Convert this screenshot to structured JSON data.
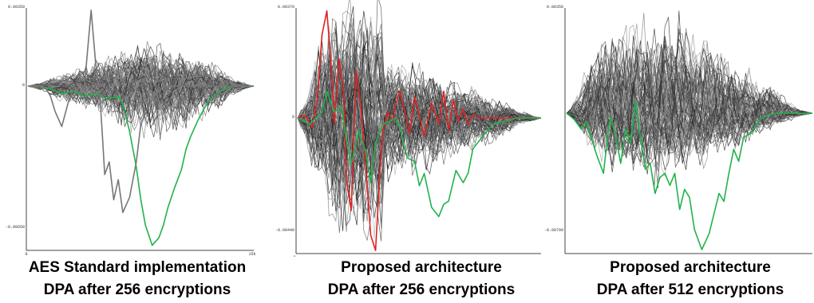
{
  "chart_data": [
    {
      "type": "line",
      "title": "",
      "xlabel": "",
      "ylabel": "",
      "y_tick_labels": [
        "0.00350",
        "0",
        "-0.00650"
      ],
      "x_tick_labels": [
        "0",
        "15k"
      ],
      "caption_line1": "AES Standard implementation",
      "caption_line2": "DPA after 256 encryptions",
      "n_background_traces": 90,
      "highlight_series": [
        {
          "color": "#22b24c",
          "x": [
            0,
            5,
            10,
            15,
            20,
            25,
            30,
            35,
            40,
            42,
            45,
            48,
            50,
            52,
            55,
            58,
            60,
            62,
            65,
            68,
            70,
            72,
            75,
            78,
            80,
            82,
            85,
            88,
            90,
            95,
            100
          ],
          "y": [
            0,
            0,
            -0.0001,
            -0.0003,
            -0.0002,
            -0.0004,
            -0.0003,
            -0.0005,
            -0.0004,
            -0.0007,
            -0.0018,
            -0.0032,
            -0.0045,
            -0.0055,
            -0.0063,
            -0.006,
            -0.0055,
            -0.0048,
            -0.004,
            -0.0033,
            -0.0025,
            -0.002,
            -0.0014,
            -0.0009,
            -0.0006,
            -0.0004,
            -0.0002,
            -0.0001,
            0,
            0,
            0
          ]
        },
        {
          "color": "#777777",
          "x": [
            0,
            3,
            6,
            8,
            10,
            12,
            15,
            18,
            20,
            25,
            28,
            30,
            32,
            33,
            34,
            36,
            38,
            40,
            42,
            45,
            48,
            50,
            55,
            60,
            70,
            80,
            90,
            100
          ],
          "y": [
            0,
            0,
            0,
            -0.0001,
            -0.0004,
            -0.001,
            -0.0016,
            -0.0006,
            -0.0002,
            0,
            0.0034,
            0.001,
            -0.0006,
            -0.002,
            -0.0035,
            -0.003,
            -0.0045,
            -0.0037,
            -0.005,
            -0.0044,
            -0.003,
            -0.0015,
            -0.0005,
            0,
            0,
            0,
            0,
            0
          ]
        }
      ],
      "ylim": [
        -0.0065,
        0.0035
      ]
    },
    {
      "type": "line",
      "title": "",
      "xlabel": "",
      "ylabel": "",
      "y_tick_labels": [
        "0.00370",
        "0",
        "-0.00440"
      ],
      "x_tick_labels": [
        "0"
      ],
      "caption_line1": "Proposed architecture",
      "caption_line2": "DPA after 256 encryptions",
      "n_background_traces": 90,
      "highlight_series": [
        {
          "color": "#dd2222",
          "x": [
            0,
            3,
            6,
            8,
            10,
            12,
            14,
            15,
            17,
            19,
            20,
            22,
            24,
            26,
            28,
            30,
            32,
            34,
            35,
            37,
            39,
            40,
            42,
            44,
            46,
            48,
            50,
            52,
            55,
            58,
            60,
            62,
            64,
            66,
            68,
            70,
            72,
            75,
            78,
            80,
            85,
            90,
            95,
            100
          ],
          "y": [
            0,
            0.0001,
            -0.0003,
            0.0006,
            0.0028,
            0.0036,
            0.0015,
            -0.0002,
            0.002,
            0.0008,
            -0.002,
            -0.003,
            0.0016,
            0.0003,
            -0.0016,
            -0.0038,
            -0.0043,
            -0.0015,
            -0.0004,
            0.0002,
            -0.0001,
            0.0004,
            0.0009,
            0.0002,
            -0.0005,
            0.0007,
            0.0001,
            -0.0006,
            0.0005,
            -0.0002,
            0.0009,
            -0.0004,
            0.0006,
            -0.0001,
            0.0003,
            -0.0002,
            0.0001,
            0,
            0,
            0,
            0,
            0,
            0,
            0
          ]
        },
        {
          "color": "#22b24c",
          "x": [
            0,
            5,
            10,
            12,
            15,
            18,
            20,
            22,
            25,
            28,
            30,
            32,
            35,
            38,
            40,
            42,
            45,
            48,
            50,
            52,
            55,
            58,
            60,
            62,
            65,
            68,
            70,
            72,
            75,
            78,
            80,
            85,
            90,
            95,
            100
          ],
          "y": [
            0,
            -0.0002,
            0.0002,
            0.0009,
            0.0002,
            0.0004,
            -0.0007,
            -0.0015,
            -0.0004,
            -0.0011,
            -0.0021,
            -0.0008,
            -0.0002,
            -0.0001,
            0,
            -0.0003,
            -0.0013,
            -0.0014,
            -0.0022,
            -0.0018,
            -0.0029,
            -0.0032,
            -0.0028,
            -0.0027,
            -0.0017,
            -0.0021,
            -0.0018,
            -0.001,
            -0.0007,
            -0.0004,
            -0.0002,
            -0.0001,
            0,
            0,
            0
          ]
        }
      ],
      "ylim": [
        -0.0044,
        0.0037
      ]
    },
    {
      "type": "line",
      "title": "",
      "xlabel": "",
      "ylabel": "",
      "y_tick_labels": [
        "0.00350",
        "-0.00700"
      ],
      "x_tick_labels": [],
      "caption_line1": "Proposed architecture",
      "caption_line2": "DPA after 512 encryptions",
      "n_background_traces": 90,
      "highlight_series": [
        {
          "color": "#22b24c",
          "x": [
            0,
            3,
            6,
            8,
            10,
            12,
            15,
            17,
            18,
            20,
            22,
            24,
            26,
            28,
            30,
            32,
            34,
            36,
            38,
            40,
            42,
            44,
            46,
            48,
            50,
            52,
            55,
            58,
            60,
            62,
            64,
            66,
            68,
            70,
            72,
            75,
            78,
            80,
            82,
            85,
            88,
            90,
            95,
            100
          ],
          "y": [
            0,
            -0.0003,
            -0.0008,
            -0.0004,
            -0.0012,
            -0.002,
            -0.003,
            -0.0008,
            -0.0002,
            -0.0012,
            -0.0025,
            -0.0008,
            -0.0015,
            0.0004,
            -0.0012,
            -0.0028,
            -0.0025,
            -0.004,
            -0.0032,
            -0.003,
            -0.0036,
            -0.003,
            -0.0048,
            -0.0038,
            -0.0042,
            -0.0058,
            -0.0068,
            -0.006,
            -0.005,
            -0.004,
            -0.0044,
            -0.003,
            -0.0018,
            -0.0024,
            -0.0012,
            -0.001,
            -0.0004,
            -0.0002,
            -0.0001,
            0,
            0,
            0,
            0,
            0
          ]
        }
      ],
      "ylim": [
        -0.007,
        0.0035
      ]
    }
  ]
}
